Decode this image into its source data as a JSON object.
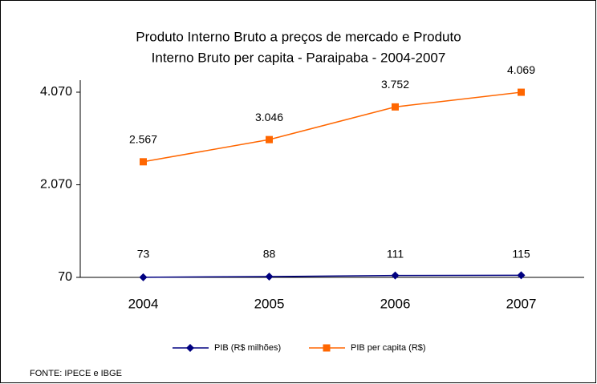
{
  "chart_data": {
    "type": "line",
    "title": [
      "Produto Interno Bruto a preços de mercado  e  Produto",
      "Interno Bruto per capita - Paraipaba - 2004-2007"
    ],
    "categories": [
      "2004",
      "2005",
      "2006",
      "2007"
    ],
    "series": [
      {
        "name": "PIB (R$ milhões)",
        "color": "#000080",
        "marker": "diamond",
        "values": [
          73,
          88,
          111,
          115
        ]
      },
      {
        "name": "PIB per capita (R$)",
        "color": "#ff6600",
        "marker": "square",
        "values": [
          2567,
          3046,
          3752,
          4069
        ],
        "value_labels": [
          "2.567",
          "3.046",
          "3.752",
          "4.069"
        ]
      }
    ],
    "ylim": [
      70,
      4070
    ],
    "yticks": [
      70,
      {
        "value": 2070,
        "label": "2.070"
      },
      {
        "value": 4070,
        "label": "4.070"
      }
    ],
    "grid": false,
    "legend": "bottom",
    "source": "FONTE: IPECE e IBGE"
  }
}
